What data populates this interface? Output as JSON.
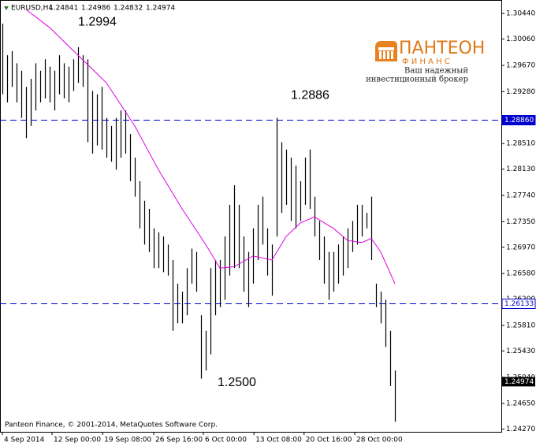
{
  "chart_data": {
    "type": "ohlc",
    "symbol": "EURUSD,H4",
    "header_ohlc": [
      1.24841,
      1.24986,
      1.24832,
      1.24974
    ],
    "copyright": "Panteon Finance, © 2001-2014, MetaQuotes Software Corp.",
    "logo": {
      "name": "ПАНТЕОН",
      "sub": "Ф И Н А Н С",
      "line1": "Ваш надежный",
      "line2": "инвестиционный брокер"
    },
    "annotations": [
      {
        "text": "1.2994",
        "x": 16,
        "y": 1.3031
      },
      {
        "text": "1.2886",
        "x": 61,
        "y": 1.2922
      },
      {
        "text": "1.2500",
        "x": 45.5,
        "y": 1.2496
      }
    ],
    "xlim": [
      -0.5,
      105.5
    ],
    "ylim": [
      1.2423,
      1.3064
    ],
    "yticks": [
      {
        "value": 1.3044,
        "label": "1.30440"
      },
      {
        "value": 1.3006,
        "label": "1.30060"
      },
      {
        "value": 1.2967,
        "label": "1.29670"
      },
      {
        "value": 1.2928,
        "label": "1.29280"
      },
      {
        "value": 1.2851,
        "label": "1.28510"
      },
      {
        "value": 1.2813,
        "label": "1.28130"
      },
      {
        "value": 1.2774,
        "label": "1.27740"
      },
      {
        "value": 1.2735,
        "label": "1.27350"
      },
      {
        "value": 1.2697,
        "label": "1.26970"
      },
      {
        "value": 1.2658,
        "label": "1.26580"
      },
      {
        "value": 1.262,
        "label": "1.26200"
      },
      {
        "value": 1.2581,
        "label": "1.25810"
      },
      {
        "value": 1.2543,
        "label": "1.25430"
      },
      {
        "value": 1.2504,
        "label": "1.25040"
      },
      {
        "value": 1.2465,
        "label": "1.24650"
      },
      {
        "value": 1.2427,
        "label": "1.24270"
      }
    ],
    "xticks": [
      {
        "value": 0,
        "label": "4 Sep 2014"
      },
      {
        "value": 10.5,
        "label": "12 Sep 00:00"
      },
      {
        "value": 21.2,
        "label": "19 Sep 08:00"
      },
      {
        "value": 32,
        "label": "26 Sep 16:00"
      },
      {
        "value": 42.5,
        "label": "6 Oct 00:00"
      },
      {
        "value": 53.2,
        "label": "13 Oct 08:00"
      },
      {
        "value": 63.8,
        "label": "20 Oct 16:00"
      },
      {
        "value": 74.5,
        "label": "28 Oct 00:00"
      }
    ],
    "hlines": [
      {
        "value": 1.2886,
        "label": "1.28860",
        "color": "#0000cc"
      },
      {
        "value": 1.26133,
        "label": "1.26133",
        "color": "#0000cc"
      }
    ],
    "bid": 1.24974,
    "bar_color": "#000000",
    "bars": {
      "high": [
        1.3029,
        1.2982,
        1.2988,
        1.297,
        1.2959,
        1.2935,
        1.2947,
        1.297,
        1.2959,
        1.2976,
        1.2965,
        1.2959,
        1.2982,
        1.297,
        1.2965,
        1.2976,
        1.2994,
        1.2982,
        1.2976,
        1.2929,
        1.2924,
        1.2935,
        1.2889,
        1.2877,
        1.2889,
        1.29,
        1.29,
        1.2865,
        1.283,
        1.2795,
        1.2766,
        1.2754,
        1.2725,
        1.2719,
        1.2713,
        1.2701,
        1.2678,
        1.2643,
        1.2631,
        1.2666,
        1.2695,
        1.269,
        1.2596,
        1.2573,
        1.2666,
        1.2678,
        1.2678,
        1.2713,
        1.276,
        1.2789,
        1.276,
        1.2713,
        1.269,
        1.2725,
        1.276,
        1.2772,
        1.2725,
        1.2701,
        1.2889,
        1.2853,
        1.2842,
        1.283,
        1.2818,
        1.2795,
        1.283,
        1.2842,
        1.2772,
        1.2736,
        1.2713,
        1.269,
        1.269,
        1.2701,
        1.2713,
        1.2725,
        1.2736,
        1.276,
        1.276,
        1.2748,
        1.2772,
        1.2643,
        1.2631,
        1.2619,
        1.2573,
        1.2514
      ],
      "low": [
        1.2924,
        1.2912,
        1.2935,
        1.2912,
        1.2889,
        1.2859,
        1.2877,
        1.29,
        1.2912,
        1.2918,
        1.2912,
        1.29,
        1.2924,
        1.2918,
        1.2912,
        1.2929,
        1.2941,
        1.2935,
        1.2853,
        1.2836,
        1.2848,
        1.2842,
        1.283,
        1.2824,
        1.2812,
        1.283,
        1.2836,
        1.2795,
        1.2772,
        1.2725,
        1.2701,
        1.269,
        1.2666,
        1.2666,
        1.266,
        1.2655,
        1.2573,
        1.2584,
        1.2584,
        1.2596,
        1.2643,
        1.2631,
        1.2502,
        1.2514,
        1.2538,
        1.2596,
        1.2608,
        1.2619,
        1.2655,
        1.2666,
        1.2666,
        1.2631,
        1.2608,
        1.2643,
        1.2678,
        1.2701,
        1.2655,
        1.2625,
        1.2713,
        1.2748,
        1.276,
        1.2736,
        1.2725,
        1.2736,
        1.276,
        1.2754,
        1.2713,
        1.2678,
        1.2643,
        1.2619,
        1.2631,
        1.2643,
        1.2655,
        1.2666,
        1.269,
        1.2701,
        1.2713,
        1.2725,
        1.2678,
        1.2608,
        1.2584,
        1.2549,
        1.2491,
        1.2438
      ]
    },
    "ma": {
      "color": "#e000e0",
      "x": [
        5,
        10,
        16,
        22,
        28,
        33,
        38,
        43,
        46,
        49,
        53,
        57,
        60,
        63,
        66,
        70,
        73,
        76,
        78,
        80,
        83
      ],
      "values": [
        1.305,
        1.3023,
        1.2982,
        1.2941,
        1.2877,
        1.2812,
        1.2754,
        1.2701,
        1.2666,
        1.2668,
        1.2684,
        1.2678,
        1.2713,
        1.2733,
        1.2742,
        1.2725,
        1.2707,
        1.2704,
        1.271,
        1.269,
        1.2643
      ]
    }
  }
}
